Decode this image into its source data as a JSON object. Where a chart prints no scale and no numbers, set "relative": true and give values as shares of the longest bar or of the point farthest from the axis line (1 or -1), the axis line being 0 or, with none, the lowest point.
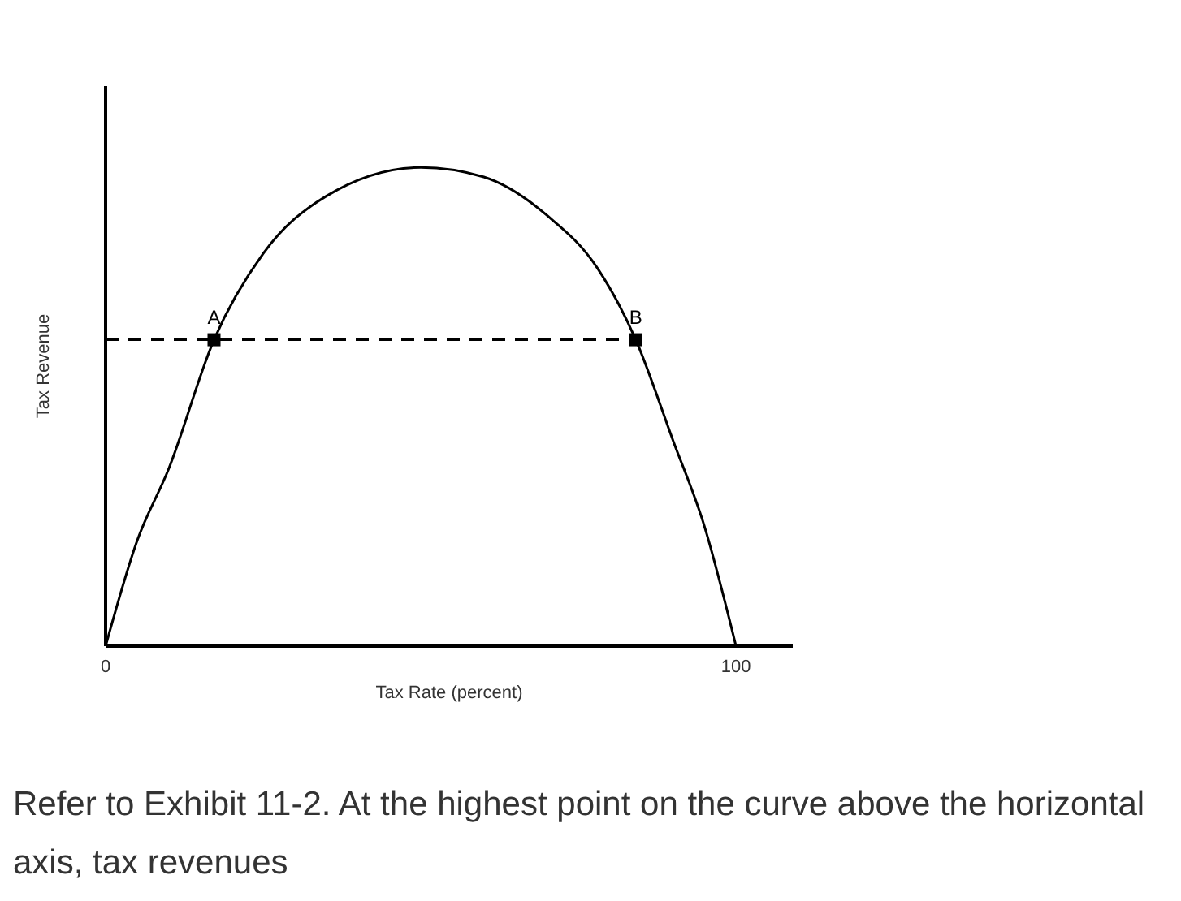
{
  "chart_data": {
    "type": "line",
    "xlabel": "Tax Rate (percent)",
    "ylabel": "Tax Revenue",
    "relative": true,
    "xlim": [
      0,
      109
    ],
    "xticks": [
      0,
      100
    ],
    "grid": false,
    "series": [
      {
        "color": "#000000",
        "marker": "none",
        "line_style": "solid",
        "x": [
          0,
          5,
          10,
          17.2,
          25,
          35,
          50,
          60,
          70,
          78,
          84.1,
          90,
          95,
          100
        ],
        "values": [
          0,
          0.22,
          0.37,
          0.64,
          0.82,
          0.94,
          1,
          0.98,
          0.9,
          0.79,
          0.64,
          0.43,
          0.25,
          0
        ]
      },
      {
        "type": "scatter",
        "color": "#000000",
        "marker": "square",
        "x": [
          17.2,
          84.1
        ],
        "values": [
          0.64,
          0.64
        ]
      }
    ],
    "ref_lines": [
      {
        "axis": "y",
        "value": 0.64,
        "color": "#000000",
        "line_style": "dashed"
      }
    ],
    "annotations": [
      {
        "text": "A",
        "x": 17.2,
        "y": 0.64
      },
      {
        "text": "B",
        "x": 84.1,
        "y": 0.64
      },
      "Refer to Exhibit 11-2. At the highest point on the curve above the horizontal axis, tax revenues"
    ]
  }
}
